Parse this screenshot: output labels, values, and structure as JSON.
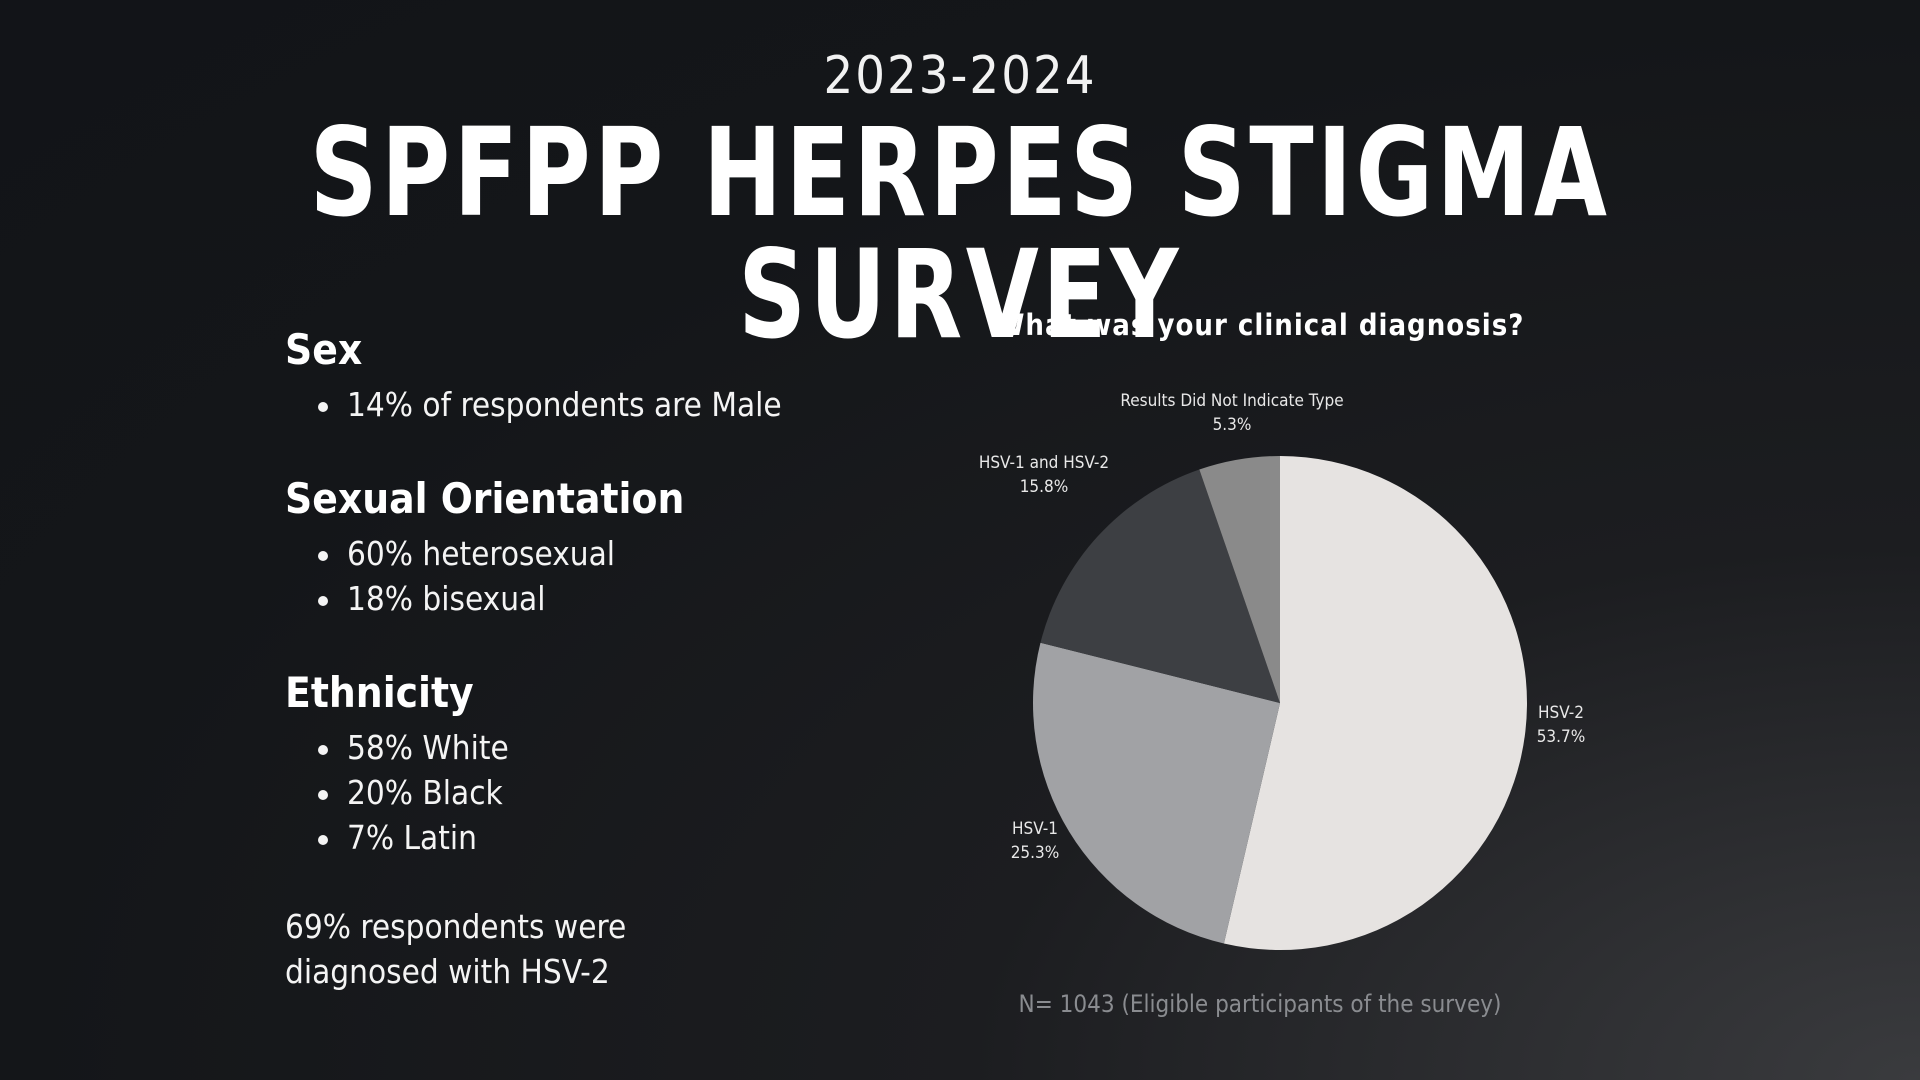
{
  "header": {
    "years": "2023-2024",
    "title": "SPFPP HERPES STIGMA SURVEY"
  },
  "demographics": {
    "sections": [
      {
        "heading": "Sex",
        "items": [
          "14% of respondents are Male"
        ]
      },
      {
        "heading": "Sexual Orientation",
        "items": [
          "60% heterosexual",
          "18% bisexual"
        ]
      },
      {
        "heading": "Ethnicity",
        "items": [
          "58% White",
          "20% Black",
          "7% Latin"
        ]
      }
    ],
    "note": "69% respondents were diagnosed with HSV-2"
  },
  "chart_data": {
    "type": "pie",
    "title": "What was your clinical diagnosis?",
    "slices": [
      {
        "label": "HSV-2",
        "value": 53.7,
        "value_label": "53.7%",
        "color": "#e6e3e1"
      },
      {
        "label": "HSV-1",
        "value": 25.3,
        "value_label": "25.3%",
        "color": "#a1a2a5"
      },
      {
        "label": "HSV-1 and HSV-2",
        "value": 15.8,
        "value_label": "15.8%",
        "color": "#3d3f43"
      },
      {
        "label": "Results Did Not Indicate Type",
        "value": 5.3,
        "value_label": "5.3%",
        "color": "#8a8a8a"
      }
    ],
    "start": "12 o'clock",
    "direction": "clockwise",
    "footnote": "N= 1043 (Eligible participants of the survey)"
  }
}
